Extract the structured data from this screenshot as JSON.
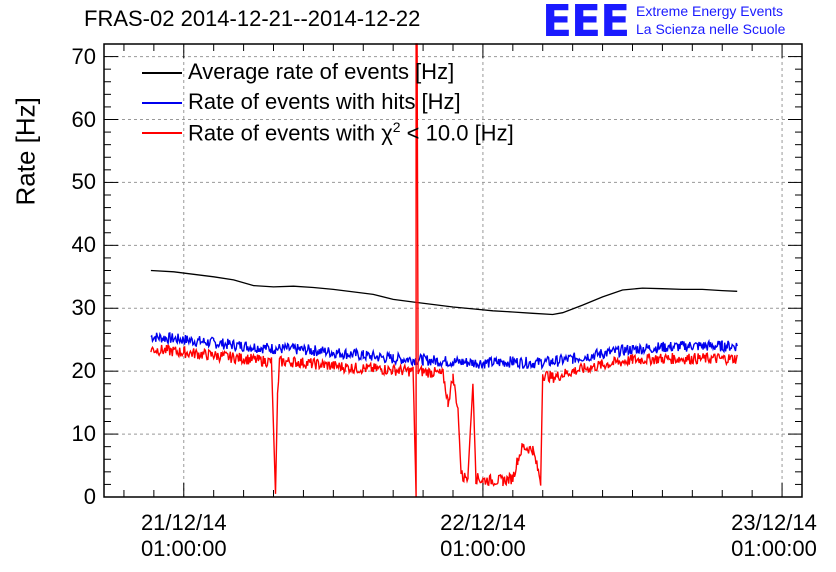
{
  "chart_data": {
    "type": "line",
    "title": "FRAS-02 2014-12-21--2014-12-22",
    "ylabel": "Rate [Hz]",
    "ylim": [
      0,
      72
    ],
    "yticks": [
      0,
      10,
      20,
      30,
      40,
      50,
      60,
      70
    ],
    "xlim_hours": [
      -8,
      62
    ],
    "xticks": [
      {
        "hours": 0,
        "date": "21/12/14",
        "time": "01:00:00"
      },
      {
        "hours": 30,
        "date": "22/12/14",
        "time": "01:00:00"
      },
      {
        "hours": 60,
        "date": "23/12/14",
        "time": "01:00:00"
      }
    ],
    "series": [
      {
        "name": "Average rate of events [Hz]",
        "color": "#000000",
        "points": [
          [
            -3.3,
            36
          ],
          [
            -1,
            35.8
          ],
          [
            1,
            35.4
          ],
          [
            3,
            35
          ],
          [
            5,
            34.5
          ],
          [
            7,
            33.6
          ],
          [
            9,
            33.4
          ],
          [
            11,
            33.5
          ],
          [
            13,
            33.3
          ],
          [
            15,
            33
          ],
          [
            17,
            32.6
          ],
          [
            19,
            32.2
          ],
          [
            21,
            31.4
          ],
          [
            23,
            31
          ],
          [
            25,
            30.6
          ],
          [
            27,
            30.2
          ],
          [
            29,
            29.9
          ],
          [
            31,
            29.6
          ],
          [
            33,
            29.4
          ],
          [
            35,
            29.2
          ],
          [
            37,
            29
          ],
          [
            38,
            29.3
          ],
          [
            40,
            30.5
          ],
          [
            42,
            31.8
          ],
          [
            44,
            32.9
          ],
          [
            46,
            33.2
          ],
          [
            48,
            33.1
          ],
          [
            50,
            33
          ],
          [
            52,
            33
          ],
          [
            54,
            32.8
          ],
          [
            55.5,
            32.7
          ]
        ]
      },
      {
        "name": "Rate of events with hits [Hz]",
        "color": "#0000ee",
        "points": [
          [
            -3.3,
            25.5
          ],
          [
            0,
            25
          ],
          [
            3,
            24.5
          ],
          [
            6,
            24
          ],
          [
            9,
            23.6
          ],
          [
            11,
            23.5
          ],
          [
            13,
            23.3
          ],
          [
            15,
            23
          ],
          [
            18,
            22.5
          ],
          [
            21,
            22
          ],
          [
            24,
            21.8
          ],
          [
            27,
            21.5
          ],
          [
            30,
            21.3
          ],
          [
            33,
            21.5
          ],
          [
            35,
            21.3
          ],
          [
            37,
            21.5
          ],
          [
            39,
            22
          ],
          [
            42,
            22.8
          ],
          [
            45,
            23.5
          ],
          [
            48,
            23.8
          ],
          [
            51,
            24
          ],
          [
            54,
            24
          ],
          [
            55.5,
            24
          ]
        ]
      },
      {
        "name": "Rate of events with χ2 < 10.0 [Hz]",
        "color": "#ff0000",
        "points": [
          [
            -3.3,
            23.5
          ],
          [
            0,
            23
          ],
          [
            3,
            22.5
          ],
          [
            6,
            22
          ],
          [
            8.8,
            21.5
          ],
          [
            9,
            11
          ],
          [
            9.2,
            0.5
          ],
          [
            9.4,
            16
          ],
          [
            9.6,
            21.5
          ],
          [
            11,
            21.5
          ],
          [
            14,
            21
          ],
          [
            17,
            20.5
          ],
          [
            20,
            20.3
          ],
          [
            23,
            20
          ],
          [
            23.3,
            0
          ],
          [
            23.3,
            72
          ],
          [
            23.4,
            72
          ],
          [
            23.5,
            20
          ],
          [
            25,
            19.8
          ],
          [
            26,
            19.5
          ],
          [
            26.5,
            15
          ],
          [
            27,
            19
          ],
          [
            27.5,
            14
          ],
          [
            27.8,
            4
          ],
          [
            28,
            3
          ],
          [
            28.5,
            3.5
          ],
          [
            29,
            18
          ],
          [
            29.3,
            3
          ],
          [
            30,
            2.7
          ],
          [
            32,
            2.6
          ],
          [
            33,
            3
          ],
          [
            33.5,
            6
          ],
          [
            34,
            8
          ],
          [
            35,
            7.5
          ],
          [
            35.8,
            2.5
          ],
          [
            36,
            19.5
          ],
          [
            37,
            19
          ],
          [
            39,
            20
          ],
          [
            42,
            21
          ],
          [
            45,
            21.8
          ],
          [
            48,
            22
          ],
          [
            51,
            22
          ],
          [
            54,
            22
          ],
          [
            55.5,
            22
          ]
        ]
      }
    ],
    "legend": {
      "location": "top-left",
      "entries": [
        {
          "label": "Average rate of events [Hz]",
          "color": "#000000"
        },
        {
          "label": "Rate of events with hits [Hz]",
          "color": "#0000ee"
        },
        {
          "label_prefix": "Rate of events with χ",
          "label_sup": "2",
          "label_suffix": " < 10.0 [Hz]",
          "color": "#ff0000"
        }
      ]
    }
  },
  "branding": {
    "logo": "EEE",
    "line1": "Extreme Energy Events",
    "line2": "La Scienza nelle Scuole"
  }
}
